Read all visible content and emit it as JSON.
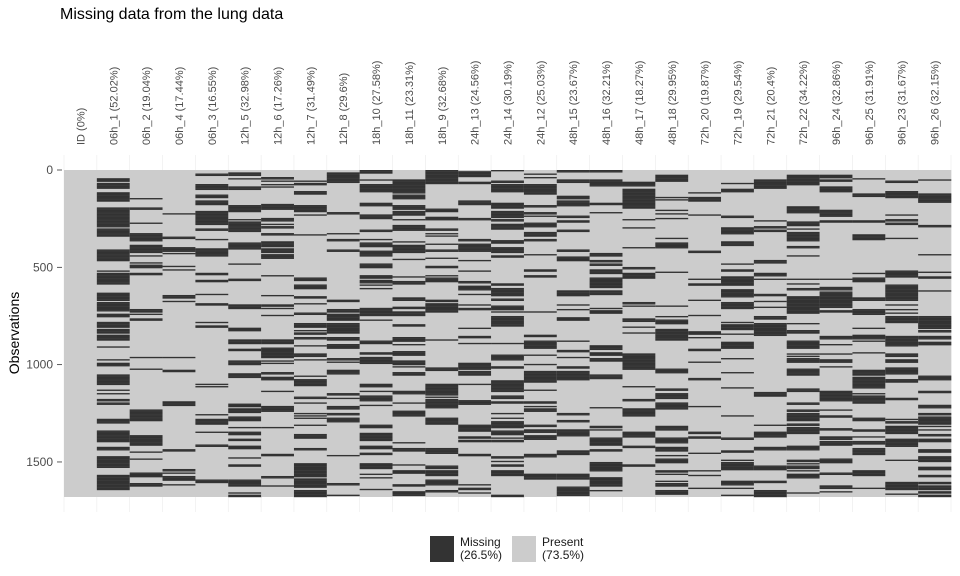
{
  "chart_data": {
    "type": "heatmap",
    "title": "Missing data from the lung data",
    "ylabel": "Observations",
    "ylim": [
      0,
      1680
    ],
    "yticks": [
      "0",
      "500",
      "1000",
      "1500"
    ],
    "ytick_values": [
      0,
      500,
      1000,
      1500
    ],
    "n_obs": 1680,
    "columns": [
      {
        "label": "ID (0%)",
        "missing_pct": 0
      },
      {
        "label": "06h_1 (52.02%)",
        "missing_pct": 52.02
      },
      {
        "label": "06h_2 (19.04%)",
        "missing_pct": 19.04
      },
      {
        "label": "06h_4 (17.44%)",
        "missing_pct": 17.44
      },
      {
        "label": "06h_3 (16.55%)",
        "missing_pct": 16.55
      },
      {
        "label": "12h_5 (32.98%)",
        "missing_pct": 32.98
      },
      {
        "label": "12h_6 (17.26%)",
        "missing_pct": 17.26
      },
      {
        "label": "12h_7 (31.49%)",
        "missing_pct": 31.49
      },
      {
        "label": "12h_8 (29.6%)",
        "missing_pct": 29.6
      },
      {
        "label": "18h_10 (27.58%)",
        "missing_pct": 27.58
      },
      {
        "label": "18h_11 (23.31%)",
        "missing_pct": 23.31
      },
      {
        "label": "18h_9 (32.68%)",
        "missing_pct": 32.68
      },
      {
        "label": "24h_13 (24.56%)",
        "missing_pct": 24.56
      },
      {
        "label": "24h_14 (30.19%)",
        "missing_pct": 30.19
      },
      {
        "label": "24h_12 (25.03%)",
        "missing_pct": 25.03
      },
      {
        "label": "48h_15 (23.67%)",
        "missing_pct": 23.67
      },
      {
        "label": "48h_16 (32.21%)",
        "missing_pct": 32.21
      },
      {
        "label": "48h_17 (18.27%)",
        "missing_pct": 18.27
      },
      {
        "label": "48h_18 (29.95%)",
        "missing_pct": 29.95
      },
      {
        "label": "72h_20 (19.87%)",
        "missing_pct": 19.87
      },
      {
        "label": "72h_19 (29.54%)",
        "missing_pct": 29.54
      },
      {
        "label": "72h_21 (20.4%)",
        "missing_pct": 20.4
      },
      {
        "label": "72h_22 (34.22%)",
        "missing_pct": 34.22
      },
      {
        "label": "96h_24 (32.86%)",
        "missing_pct": 32.86
      },
      {
        "label": "96h_25 (31.91%)",
        "missing_pct": 31.91
      },
      {
        "label": "96h_23 (31.67%)",
        "missing_pct": 31.67
      },
      {
        "label": "96h_26 (32.15%)",
        "missing_pct": 32.15
      }
    ],
    "legend": [
      {
        "line1": "Missing",
        "line2": "(26.5%)",
        "color": "#333333"
      },
      {
        "line1": "Present",
        "line2": "(73.5%)",
        "color": "#cccccc"
      }
    ],
    "legend_position": "bottom",
    "grid": true
  }
}
